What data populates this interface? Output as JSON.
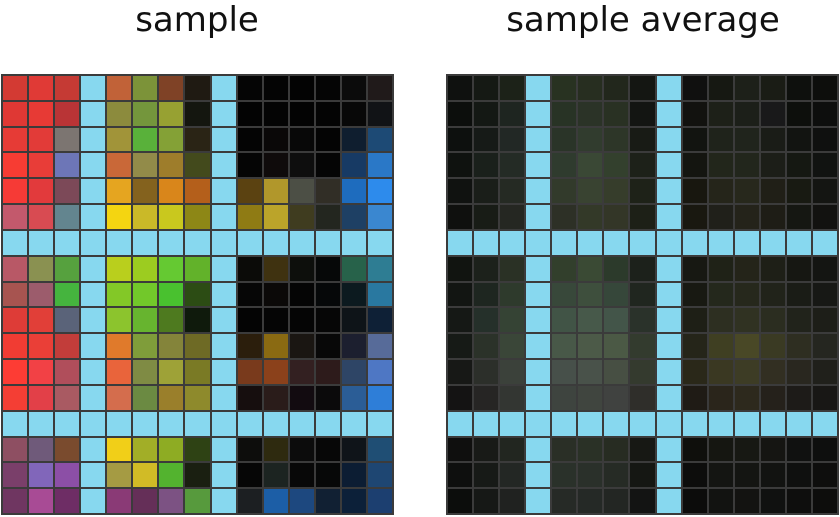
{
  "panels": [
    {
      "title": "sample"
    },
    {
      "title": "sample average"
    }
  ],
  "separator_color": "#87d8ef",
  "grid_line_color": "#3b3b3b",
  "grid": {
    "rows": 17,
    "cols": 15
  },
  "left_cells": [
    [
      "#d33a33",
      "#e03a36",
      "#c53a34",
      "SEP",
      "#c16238",
      "#7c9339",
      "#7f4226",
      "#1f1a12",
      "SEP",
      "#050505",
      "#040404",
      "#030303",
      "#050505",
      "#0b0b0b",
      "#201a1a"
    ],
    [
      "#df3834",
      "#e73a35",
      "#b93436",
      "SEP",
      "#8c8b3d",
      "#74963c",
      "#97a132",
      "#14160f",
      "SEP",
      "#030303",
      "#040404",
      "#030303",
      "#040404",
      "#080808",
      "#111316"
    ],
    [
      "#e63b36",
      "#e23b38",
      "#7c7571",
      "SEP",
      "#a19439",
      "#59b13a",
      "#84a136",
      "#2a2415",
      "SEP",
      "#040404",
      "#0a0808",
      "#080808",
      "#040404",
      "#0f1e2f",
      "#1d4a75"
    ],
    [
      "#f73c33",
      "#e83d38",
      "#6d76b7",
      "SEP",
      "#c96838",
      "#928b49",
      "#9e7d2b",
      "#434a1c",
      "SEP",
      "#050505",
      "#0f0b0b",
      "#0e0e0e",
      "#050505",
      "#173a64",
      "#2a78c7"
    ],
    [
      "#f63a36",
      "#e23a3c",
      "#7c4958",
      "SEP",
      "#e5a520",
      "#84621e",
      "#d9861b",
      "#b45f1b",
      "SEP",
      "#5b4211",
      "#b1972b",
      "#4c4f45",
      "#312e26",
      "#1e6cbe",
      "#2d8bec"
    ],
    [
      "#c3596c",
      "#d84b52",
      "#63858f",
      "SEP",
      "#f4d511",
      "#cab928",
      "#c9c81e",
      "#8d8716",
      "SEP",
      "#8f7b14",
      "#bba42a",
      "#3f3c1f",
      "#23261f",
      "#1e4064",
      "#3a87d0"
    ],
    [
      "SEP",
      "SEP",
      "SEP",
      "SEP",
      "SEP",
      "SEP",
      "SEP",
      "SEP",
      "SEP",
      "SEP",
      "SEP",
      "SEP",
      "SEP",
      "SEP",
      "SEP"
    ],
    [
      "#b85866",
      "#8a9151",
      "#56a13e",
      "SEP",
      "#b9cf1d",
      "#9ccc20",
      "#65c932",
      "#62b22a",
      "SEP",
      "#0b0b08",
      "#3f3210",
      "#0d0f0c",
      "#060808",
      "#27624a",
      "#2e7d93"
    ],
    [
      "#a75450",
      "#9c5c6c",
      "#45b43e",
      "SEP",
      "#83c827",
      "#72c82a",
      "#49c12f",
      "#2c4c14",
      "SEP",
      "#060606",
      "#0b0908",
      "#050505",
      "#060809",
      "#0c1a1f",
      "#2978a0"
    ],
    [
      "#de3c37",
      "#e13f38",
      "#5a6379",
      "SEP",
      "#8cc42d",
      "#67b42f",
      "#4e7a1f",
      "#0f1a0c",
      "SEP",
      "#040404",
      "#050505",
      "#050505",
      "#060606",
      "#0e1418",
      "#0e2036"
    ],
    [
      "#f13c33",
      "#ea3f37",
      "#c23d3a",
      "SEP",
      "#e07a2b",
      "#7f9d3a",
      "#84843a",
      "#6e6a25",
      "SEP",
      "#2b1e0c",
      "#8a6a12",
      "#1a1612",
      "#080808",
      "#1c1f2f",
      "#576b99"
    ],
    [
      "#fd3c34",
      "#f24145",
      "#b04e5b",
      "SEP",
      "#e9643b",
      "#7f8b44",
      "#9ea237",
      "#7a7a25",
      "SEP",
      "#793a1c",
      "#8b411b",
      "#332021",
      "#2d1b1b",
      "#2e4566",
      "#4e77c4"
    ],
    [
      "#f43e34",
      "#e24048",
      "#a95a62",
      "SEP",
      "#d46d4d",
      "#6b8a42",
      "#9a7f2b",
      "#8e8a2c",
      "SEP",
      "#160e0e",
      "#2a1c1a",
      "#120b10",
      "#0b0a0b",
      "#2b5d96",
      "#2e7ed8"
    ],
    [
      "SEP",
      "SEP",
      "SEP",
      "SEP",
      "SEP",
      "SEP",
      "SEP",
      "SEP",
      "SEP",
      "SEP",
      "SEP",
      "SEP",
      "SEP",
      "SEP",
      "SEP"
    ],
    [
      "#8e4f62",
      "#6f5a7a",
      "#7a4b2e",
      "SEP",
      "#f1cf18",
      "#a2ae27",
      "#8eac23",
      "#2e4214",
      "SEP",
      "#0d0d0c",
      "#2e2a0f",
      "#0c0c0c",
      "#070707",
      "#0f1419",
      "#1f4e74"
    ],
    [
      "#7a3f6a",
      "#8166ba",
      "#8c4fa6",
      "SEP",
      "#a59b43",
      "#d1bb26",
      "#53b32f",
      "#1a1f11",
      "SEP",
      "#060606",
      "#1c2421",
      "#080808",
      "#070808",
      "#0c1d33",
      "#1e4672"
    ],
    [
      "#6f3661",
      "#a84b95",
      "#6e2d65",
      "SEP",
      "#8a3a76",
      "#652f58",
      "#7c5283",
      "#579a3d",
      "SEP",
      "#1c1f22",
      "#1c5ea6",
      "#1d487f",
      "#112033",
      "#0c2039",
      "#1c3f70"
    ]
  ],
  "right_cells": [
    [
      "#0f110f",
      "#151914",
      "#1c2218",
      "SEP",
      "#283221",
      "#272e20",
      "#22271c",
      "#141612",
      "SEP",
      "#10100f",
      "#161812",
      "#1d2019",
      "#1a1c15",
      "#0e100d",
      "#0d0e0c"
    ],
    [
      "#0c0e0c",
      "#141814",
      "#1e2520",
      "SEP",
      "#283325",
      "#2b3327",
      "#293123",
      "#131512",
      "SEP",
      "#12120f",
      "#1d2018",
      "#1c1f19",
      "#19191a",
      "#0d0f0c",
      "#0d0e0d"
    ],
    [
      "#0d100e",
      "#161a17",
      "#222825",
      "SEP",
      "#2a3428",
      "#313c2e",
      "#2d3628",
      "#181b15",
      "SEP",
      "#121410",
      "#1f231b",
      "#20241c",
      "#1a1c17",
      "#121411",
      "#0f100f"
    ],
    [
      "#0f120f",
      "#1a201b",
      "#242b25",
      "SEP",
      "#2f3b2e",
      "#3a4835",
      "#33402d",
      "#1d2119",
      "SEP",
      "#141510",
      "#22261b",
      "#22261c",
      "#1c1e18",
      "#151812",
      "#111311"
    ],
    [
      "#101210",
      "#1a1e19",
      "#252a23",
      "SEP",
      "#323a2b",
      "#394331",
      "#363d2b",
      "#1e2218",
      "SEP",
      "#18170f",
      "#25251a",
      "#27281c",
      "#201f17",
      "#181a12",
      "#141512"
    ],
    [
      "#0f100e",
      "#181c16",
      "#252722",
      "SEP",
      "#2d3026",
      "#333928",
      "#333627",
      "#1d2017",
      "SEP",
      "#191810",
      "#20201a",
      "#24231a",
      "#1e1d16",
      "#151712",
      "#121210"
    ],
    [
      "SEP",
      "SEP",
      "SEP",
      "SEP",
      "SEP",
      "SEP",
      "SEP",
      "SEP",
      "SEP",
      "SEP",
      "SEP",
      "SEP",
      "SEP",
      "SEP",
      "SEP"
    ],
    [
      "#111410",
      "#1c211b",
      "#2a3125",
      "SEP",
      "#323f2c",
      "#3a4a34",
      "#2c3a2b",
      "#1c211b",
      "SEP",
      "#171812",
      "#1f2217",
      "#242419",
      "#1e1f17",
      "#161712",
      "#141512"
    ],
    [
      "#121512",
      "#1e2620",
      "#2e3a2c",
      "SEP",
      "#38483a",
      "#3e4f3d",
      "#36473a",
      "#20261f",
      "SEP",
      "#181912",
      "#24281c",
      "#26281c",
      "#21231a",
      "#1a1c16",
      "#171815"
    ],
    [
      "#151815",
      "#25302a",
      "#354334",
      "SEP",
      "#415446",
      "#47594a",
      "#435549",
      "#2a322a",
      "SEP",
      "#1e1f16",
      "#2d2f21",
      "#303222",
      "#2b2d20",
      "#21231b",
      "#1d1e18"
    ],
    [
      "#161a16",
      "#2b3229",
      "#3a4638",
      "SEP",
      "#485848",
      "#4c5a48",
      "#4b5945",
      "#333b2e",
      "SEP",
      "#252519",
      "#3f3f22",
      "#494826",
      "#3a3a23",
      "#2e2e21",
      "#252620"
    ],
    [
      "#171816",
      "#2c2f2a",
      "#3b413a",
      "SEP",
      "#47504a",
      "#49524a",
      "#474f43",
      "#343a2e",
      "SEP",
      "#2a2819",
      "#3a3822",
      "#3d3c25",
      "#322f22",
      "#29271f",
      "#20201b"
    ],
    [
      "#141313",
      "#262524",
      "#333632",
      "SEP",
      "#3e443f",
      "#40453f",
      "#404240",
      "#2f2e2a",
      "SEP",
      "#1f1b15",
      "#2a251b",
      "#2d291d",
      "#25211b",
      "#1d1b18",
      "#181715"
    ],
    [
      "SEP",
      "SEP",
      "SEP",
      "SEP",
      "SEP",
      "SEP",
      "SEP",
      "SEP",
      "SEP",
      "SEP",
      "SEP",
      "SEP",
      "SEP",
      "SEP",
      "SEP"
    ],
    [
      "#0f0f0e",
      "#181a17",
      "#222620",
      "SEP",
      "#2a2f26",
      "#2a3126",
      "#272c22",
      "#171814",
      "SEP",
      "#0f0f0c",
      "#151611",
      "#171813",
      "#151512",
      "#101110",
      "#0e0f0e"
    ],
    [
      "#0e0f0e",
      "#171a17",
      "#232724",
      "SEP",
      "#2a312a",
      "#2a302a",
      "#262b25",
      "#151713",
      "SEP",
      "#0d0d0c",
      "#141512",
      "#141512",
      "#121311",
      "#0f100f",
      "#0e0e0d"
    ],
    [
      "#0c0d0c",
      "#161816",
      "#202220",
      "SEP",
      "#262a26",
      "#252926",
      "#232623",
      "#131413",
      "SEP",
      "#0c0c0b",
      "#121311",
      "#131311",
      "#101110",
      "#0e0e0d",
      "#0d0d0c"
    ]
  ]
}
